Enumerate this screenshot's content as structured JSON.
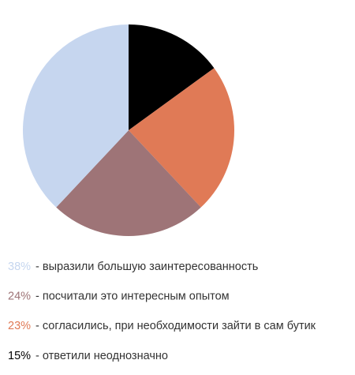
{
  "chart_data": {
    "type": "pie",
    "categories": [
      "- выразили большую заинтересованность",
      "- посчитали это интересным опытом",
      "- согласились, при необходимости зайти в сам бутик",
      "- ответили неоднозначно"
    ],
    "values": [
      38,
      24,
      23,
      15
    ],
    "value_labels": [
      "38%",
      "24%",
      "23%",
      "15%"
    ],
    "colors": [
      "#c6d6ef",
      "#9e7477",
      "#e07a56",
      "#000000"
    ]
  }
}
